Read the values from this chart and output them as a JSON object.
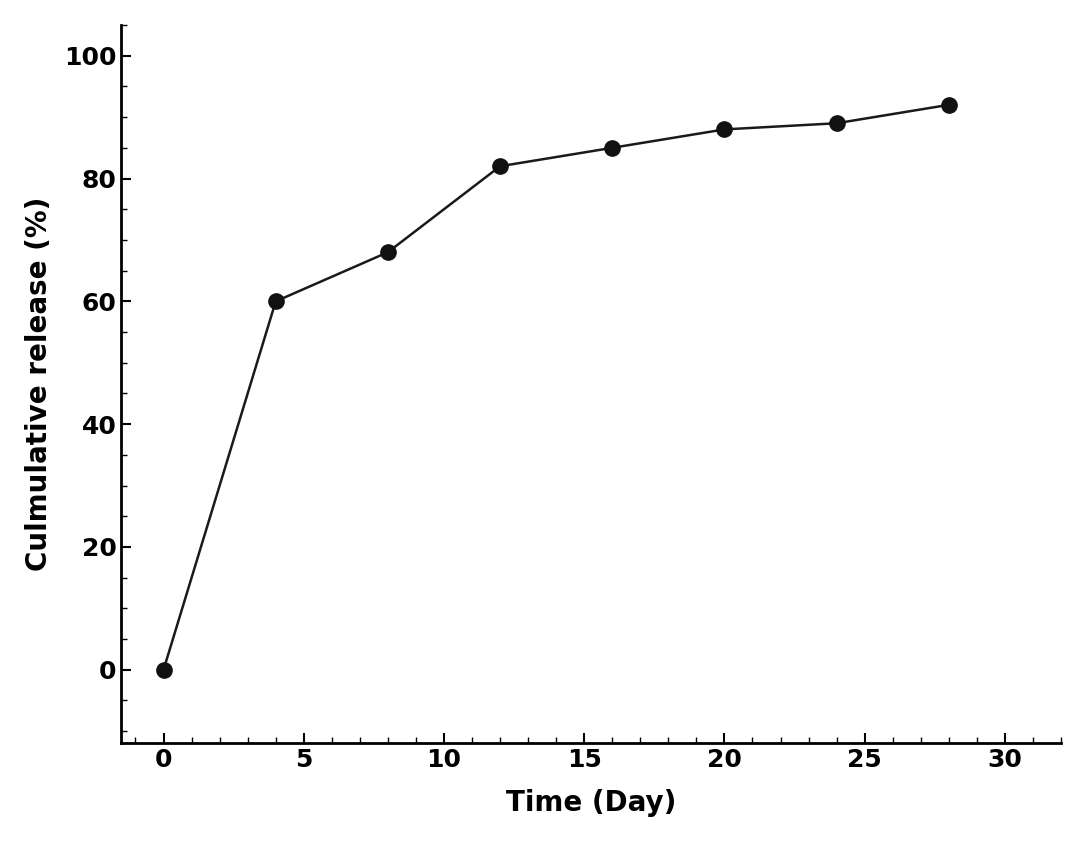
{
  "x": [
    0,
    4,
    8,
    12,
    16,
    20,
    24,
    28
  ],
  "y": [
    0,
    60,
    68,
    82,
    85,
    88,
    89,
    92
  ],
  "xlabel": "Time (Day)",
  "ylabel": "Culmulative release (%)",
  "xlim": [
    -1.5,
    32
  ],
  "ylim": [
    -12,
    105
  ],
  "xticks": [
    0,
    5,
    10,
    15,
    20,
    25,
    30
  ],
  "yticks": [
    0,
    20,
    40,
    60,
    80,
    100
  ],
  "line_color": "#1a1a1a",
  "marker_color": "#111111",
  "marker_size": 11,
  "line_width": 1.8,
  "marker_style": "o",
  "background_color": "#ffffff",
  "xlabel_fontsize": 20,
  "ylabel_fontsize": 20,
  "tick_fontsize": 18
}
